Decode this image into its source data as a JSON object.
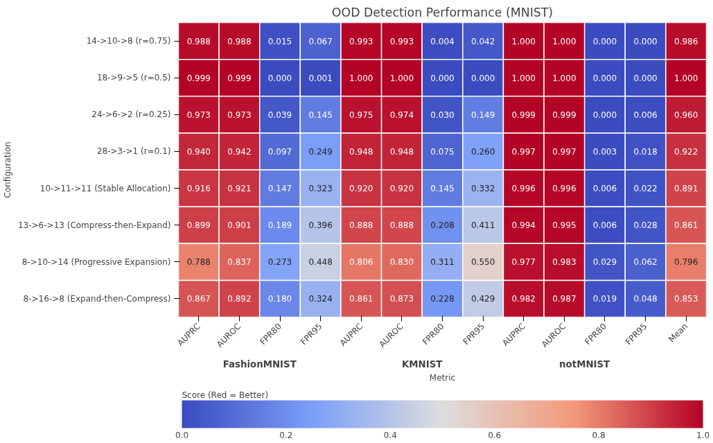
{
  "chart_data": {
    "type": "heatmap",
    "title": "OOD Detection Performance (MNIST)",
    "xlabel": "Metric",
    "ylabel": "Configuration",
    "clabel": "Score (Red = Better)",
    "categories": [
      "AUPRC",
      "AUROC",
      "FPR80",
      "FPR95",
      "AUPRC",
      "AUROC",
      "FPR80",
      "FPR95",
      "AUPRC",
      "AUROC",
      "FPR80",
      "FPR95",
      "Mean"
    ],
    "y_categories": [
      "14->10->8 (r=0.75)",
      "18->9->5 (r=0.5)",
      "24->6->2 (r=0.25)",
      "28->3->1 (r=0.1)",
      "10->11->11 (Stable Allocation)",
      "13->6->13 (Compress-then-Expand)",
      "8->10->14 (Progressive Expansion)",
      "8->16->8 (Expand-then-Compress)"
    ],
    "cells": [
      [
        0.988,
        0.988,
        0.015,
        0.067,
        0.993,
        0.993,
        0.004,
        0.042,
        1.0,
        1.0,
        0.0,
        0.0,
        0.986
      ],
      [
        0.999,
        0.999,
        0.0,
        0.001,
        1.0,
        1.0,
        0.0,
        0.0,
        1.0,
        1.0,
        0.0,
        0.0,
        1.0
      ],
      [
        0.973,
        0.973,
        0.039,
        0.145,
        0.975,
        0.974,
        0.03,
        0.149,
        0.999,
        0.999,
        0.0,
        0.006,
        0.96
      ],
      [
        0.94,
        0.942,
        0.097,
        0.249,
        0.948,
        0.948,
        0.075,
        0.26,
        0.997,
        0.997,
        0.003,
        0.018,
        0.922
      ],
      [
        0.916,
        0.921,
        0.147,
        0.323,
        0.92,
        0.92,
        0.145,
        0.332,
        0.996,
        0.996,
        0.006,
        0.022,
        0.891
      ],
      [
        0.899,
        0.901,
        0.189,
        0.396,
        0.888,
        0.888,
        0.208,
        0.411,
        0.994,
        0.995,
        0.006,
        0.028,
        0.861
      ],
      [
        0.788,
        0.837,
        0.273,
        0.448,
        0.806,
        0.83,
        0.311,
        0.55,
        0.977,
        0.983,
        0.029,
        0.062,
        0.796
      ],
      [
        0.867,
        0.892,
        0.18,
        0.324,
        0.861,
        0.873,
        0.228,
        0.429,
        0.982,
        0.987,
        0.019,
        0.048,
        0.853
      ]
    ],
    "cell_labels": [
      [
        "0.988",
        "0.988",
        "0.015",
        "0.067",
        "0.993",
        "0.993",
        "0.004",
        "0.042",
        "1.000",
        "1.000",
        "0.000",
        "0.000",
        "0.986"
      ],
      [
        "0.999",
        "0.999",
        "0.000",
        "0.001",
        "1.000",
        "1.000",
        "0.000",
        "0.000",
        "1.000",
        "1.000",
        "0.000",
        "0.000",
        "1.000"
      ],
      [
        "0.973",
        "0.973",
        "0.039",
        "0.145",
        "0.975",
        "0.974",
        "0.030",
        "0.149",
        "0.999",
        "0.999",
        "0.000",
        "0.006",
        "0.960"
      ],
      [
        "0.940",
        "0.942",
        "0.097",
        "0.249",
        "0.948",
        "0.948",
        "0.075",
        "0.260",
        "0.997",
        "0.997",
        "0.003",
        "0.018",
        "0.922"
      ],
      [
        "0.916",
        "0.921",
        "0.147",
        "0.323",
        "0.920",
        "0.920",
        "0.145",
        "0.332",
        "0.996",
        "0.996",
        "0.006",
        "0.022",
        "0.891"
      ],
      [
        "0.899",
        "0.901",
        "0.189",
        "0.396",
        "0.888",
        "0.888",
        "0.208",
        "0.411",
        "0.994",
        "0.995",
        "0.006",
        "0.028",
        "0.861"
      ],
      [
        "0.788",
        "0.837",
        "0.273",
        "0.448",
        "0.806",
        "0.830",
        "0.311",
        "0.550",
        "0.977",
        "0.983",
        "0.029",
        "0.062",
        "0.796"
      ],
      [
        "0.867",
        "0.892",
        "0.180",
        "0.324",
        "0.861",
        "0.873",
        "0.228",
        "0.429",
        "0.982",
        "0.987",
        "0.019",
        "0.048",
        "0.853"
      ]
    ],
    "clim": [
      0,
      1
    ],
    "cticks": [
      {
        "value": 0,
        "label": "0.0"
      },
      {
        "value": 0.2,
        "label": "0.2"
      },
      {
        "value": 0.4,
        "label": "0.4"
      },
      {
        "value": 0.6,
        "label": "0.6"
      },
      {
        "value": 0.8,
        "label": "0.8"
      },
      {
        "value": 1,
        "label": "1.0"
      }
    ],
    "annotations": [
      "FashionMNIST",
      "KMNIST",
      "notMNIST"
    ]
  }
}
